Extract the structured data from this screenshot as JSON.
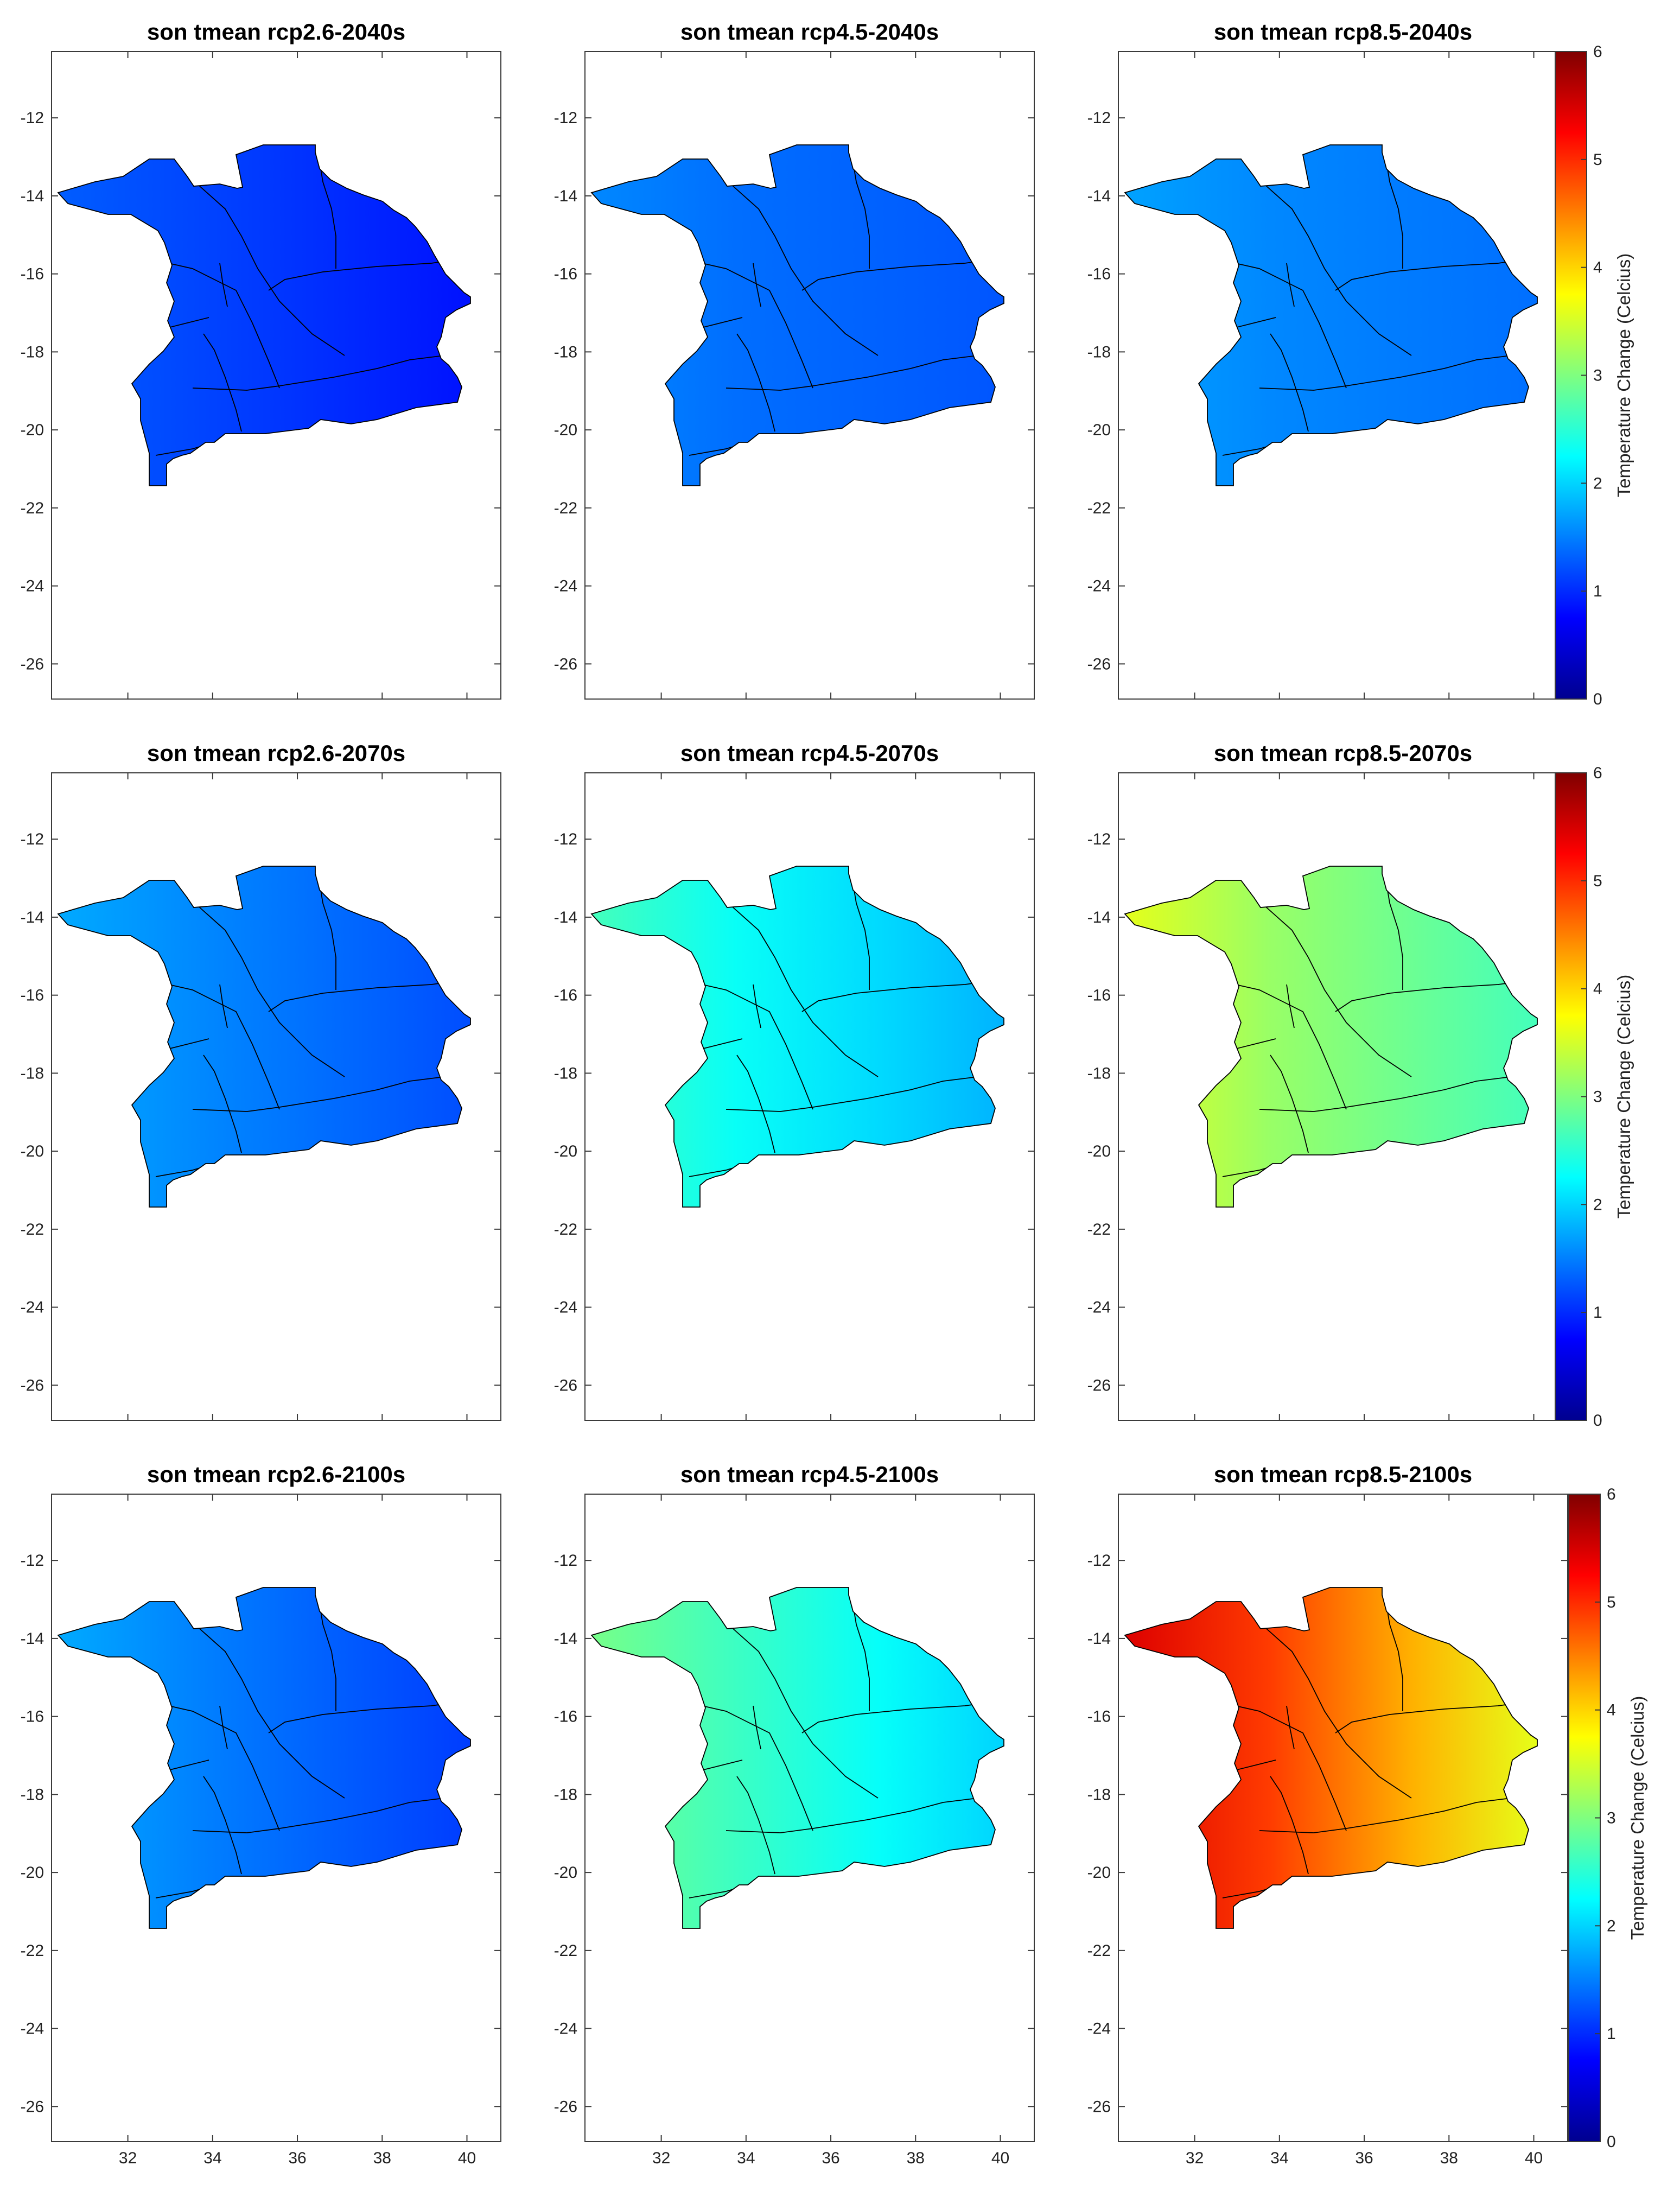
{
  "figure": {
    "colorbar": {
      "label": "Temperature Change (Celcius)",
      "ticks": [
        0,
        1,
        2,
        3,
        4,
        5,
        6
      ],
      "range": [
        0,
        6
      ],
      "colormap": "jet"
    },
    "panels": [
      {
        "title": "son tmean rcp2.6-2040s",
        "base": 1.15,
        "east_delta": -0.3,
        "west_delta": 0.15
      },
      {
        "title": "son tmean rcp4.5-2040s",
        "base": 1.4,
        "east_delta": -0.15,
        "west_delta": 0.15
      },
      {
        "title": "son tmean rcp8.5-2040s",
        "base": 1.55,
        "east_delta": -0.15,
        "west_delta": 0.15
      },
      {
        "title": "son tmean rcp2.6-2070s",
        "base": 1.55,
        "east_delta": -0.35,
        "west_delta": 0.2
      },
      {
        "title": "son tmean rcp4.5-2070s",
        "base": 2.3,
        "east_delta": -0.5,
        "west_delta": 0.35
      },
      {
        "title": "son tmean rcp8.5-2070s",
        "base": 3.15,
        "east_delta": -0.5,
        "west_delta": 0.45
      },
      {
        "title": "son tmean rcp2.6-2100s",
        "base": 1.5,
        "east_delta": -0.4,
        "west_delta": 0.25
      },
      {
        "title": "son tmean rcp4.5-2100s",
        "base": 2.6,
        "east_delta": -0.6,
        "west_delta": 0.35
      },
      {
        "title": "son tmean rcp8.5-2100s",
        "base": 4.9,
        "east_delta": -1.3,
        "west_delta": 0.55
      }
    ],
    "axes": {
      "lon_range": [
        30.2,
        40.8
      ],
      "lat_range": [
        -26.9,
        -10.3
      ],
      "lon_ticks": [
        "32",
        "34",
        "36",
        "38",
        "40"
      ],
      "lat_ticks": [
        "-12",
        "-14",
        "-16",
        "-18",
        "-20",
        "-22",
        "-24",
        "-26"
      ]
    }
  }
}
